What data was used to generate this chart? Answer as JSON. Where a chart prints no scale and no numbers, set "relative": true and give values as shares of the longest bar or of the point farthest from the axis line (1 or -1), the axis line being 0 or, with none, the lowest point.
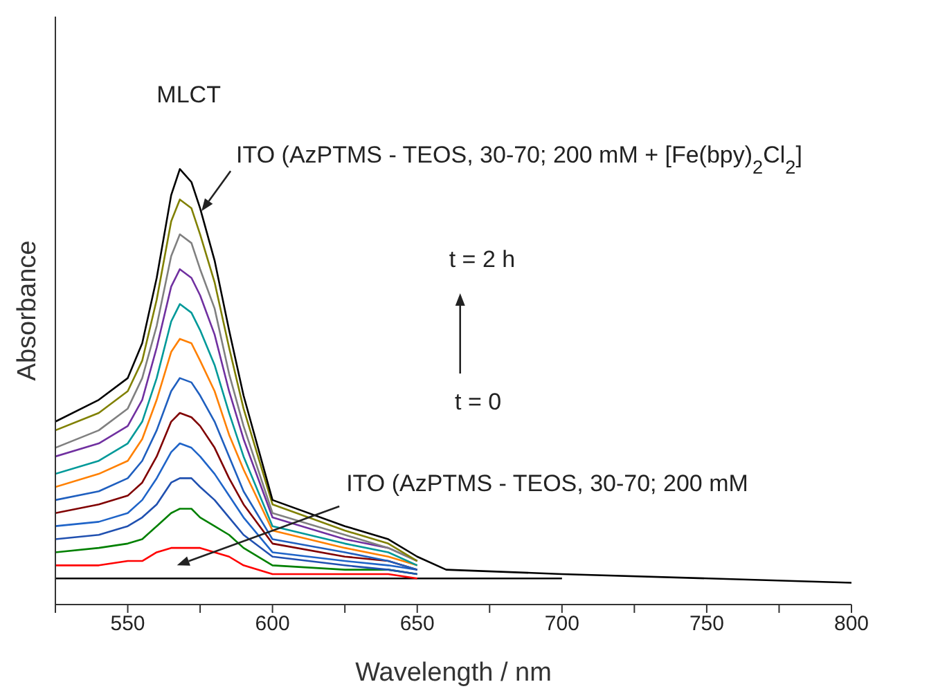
{
  "chart_data": {
    "type": "line",
    "relative": true,
    "xlabel": "Wavelength / nm",
    "ylabel": "Absorbance",
    "marker": "none",
    "line_style": "solid",
    "xlim": [
      525,
      800
    ],
    "xticks": [
      {
        "value": 525,
        "label": null
      },
      550,
      {
        "value": 575,
        "label": null
      },
      600,
      {
        "value": 625,
        "label": null
      },
      650,
      {
        "value": 675,
        "label": null
      },
      700,
      {
        "value": 725,
        "label": null
      },
      750,
      {
        "value": 775,
        "label": null
      },
      800
    ],
    "x": [
      525,
      540,
      550,
      555,
      560,
      565,
      568,
      572,
      575,
      580,
      585,
      590,
      600,
      625,
      640,
      650,
      660,
      700,
      800
    ],
    "series": [
      {
        "color": "#000000",
        "values": [
          0.06,
          0.06,
          0.06,
          0.06,
          0.06,
          0.06,
          0.06,
          0.06,
          0.06,
          0.06,
          0.06,
          0.06,
          0.06,
          0.06,
          0.06,
          0.06,
          0.06,
          0.06,
          null
        ]
      },
      {
        "color": "#ff0000",
        "values": [
          0.09,
          0.09,
          0.1,
          0.1,
          0.12,
          0.13,
          0.13,
          0.13,
          0.13,
          0.12,
          0.11,
          0.09,
          0.07,
          0.07,
          0.07,
          0.06,
          null,
          null,
          null
        ]
      },
      {
        "color": "#008000",
        "values": [
          0.12,
          0.13,
          0.14,
          0.15,
          0.18,
          0.21,
          0.22,
          0.22,
          0.2,
          0.18,
          0.16,
          0.13,
          0.09,
          0.08,
          0.08,
          0.07,
          null,
          null,
          null
        ]
      },
      {
        "color": "#2050b0",
        "values": [
          0.15,
          0.16,
          0.18,
          0.2,
          0.23,
          0.28,
          0.29,
          0.29,
          0.27,
          0.24,
          0.2,
          0.16,
          0.11,
          0.09,
          0.08,
          0.07,
          null,
          null,
          null
        ]
      },
      {
        "color": "#1f64c8",
        "values": [
          0.18,
          0.19,
          0.21,
          0.24,
          0.29,
          0.35,
          0.37,
          0.36,
          0.34,
          0.3,
          0.25,
          0.2,
          0.12,
          0.1,
          0.09,
          0.08,
          null,
          null,
          null
        ]
      },
      {
        "color": "#800000",
        "values": [
          0.21,
          0.23,
          0.25,
          0.28,
          0.34,
          0.42,
          0.44,
          0.43,
          0.41,
          0.36,
          0.29,
          0.23,
          0.14,
          0.11,
          0.1,
          0.08,
          null,
          null,
          null
        ]
      },
      {
        "color": "#1f5fbf",
        "values": [
          0.24,
          0.26,
          0.29,
          0.33,
          0.4,
          0.49,
          0.52,
          0.51,
          0.48,
          0.42,
          0.34,
          0.26,
          0.15,
          0.12,
          0.1,
          0.08,
          null,
          null,
          null
        ]
      },
      {
        "color": "#ff8000",
        "values": [
          0.27,
          0.3,
          0.33,
          0.38,
          0.47,
          0.58,
          0.61,
          0.6,
          0.56,
          0.49,
          0.39,
          0.31,
          0.17,
          0.13,
          0.11,
          0.09,
          null,
          null,
          null
        ]
      },
      {
        "color": "#009999",
        "values": [
          0.3,
          0.33,
          0.37,
          0.42,
          0.52,
          0.65,
          0.69,
          0.67,
          0.63,
          0.55,
          0.44,
          0.34,
          0.18,
          0.14,
          0.12,
          0.09,
          null,
          null,
          null
        ]
      },
      {
        "color": "#7030a0",
        "values": [
          0.34,
          0.37,
          0.41,
          0.47,
          0.59,
          0.73,
          0.77,
          0.75,
          0.71,
          0.62,
          0.49,
          0.38,
          0.2,
          0.15,
          0.13,
          0.1,
          null,
          null,
          null
        ]
      },
      {
        "color": "#808080",
        "values": [
          0.36,
          0.4,
          0.45,
          0.52,
          0.64,
          0.8,
          0.85,
          0.83,
          0.77,
          0.68,
          0.53,
          0.41,
          0.21,
          0.16,
          0.13,
          0.1,
          null,
          null,
          null
        ]
      },
      {
        "color": "#808000",
        "values": [
          0.4,
          0.44,
          0.49,
          0.56,
          0.7,
          0.88,
          0.93,
          0.91,
          0.85,
          0.74,
          0.59,
          0.45,
          0.23,
          0.17,
          0.14,
          0.1,
          null,
          null,
          null
        ]
      },
      {
        "color": "#000000",
        "values": [
          0.42,
          0.47,
          0.52,
          0.6,
          0.75,
          0.94,
          1.0,
          0.97,
          0.91,
          0.79,
          0.63,
          0.48,
          0.24,
          0.18,
          0.15,
          0.11,
          0.08,
          0.07,
          0.05
        ]
      }
    ],
    "annotations": [
      "MLCT",
      {
        "text": "ITO (AzPTMS - TEOS, 30-70; 200 mM + [Fe(bpy)$_{2}$Cl$_{2}$]",
        "x": 575,
        "y": 0.9
      },
      "t = 2 h",
      "t = 0",
      "ITO (AzPTMS - TEOS, 30-70; 200 mM"
    ]
  }
}
